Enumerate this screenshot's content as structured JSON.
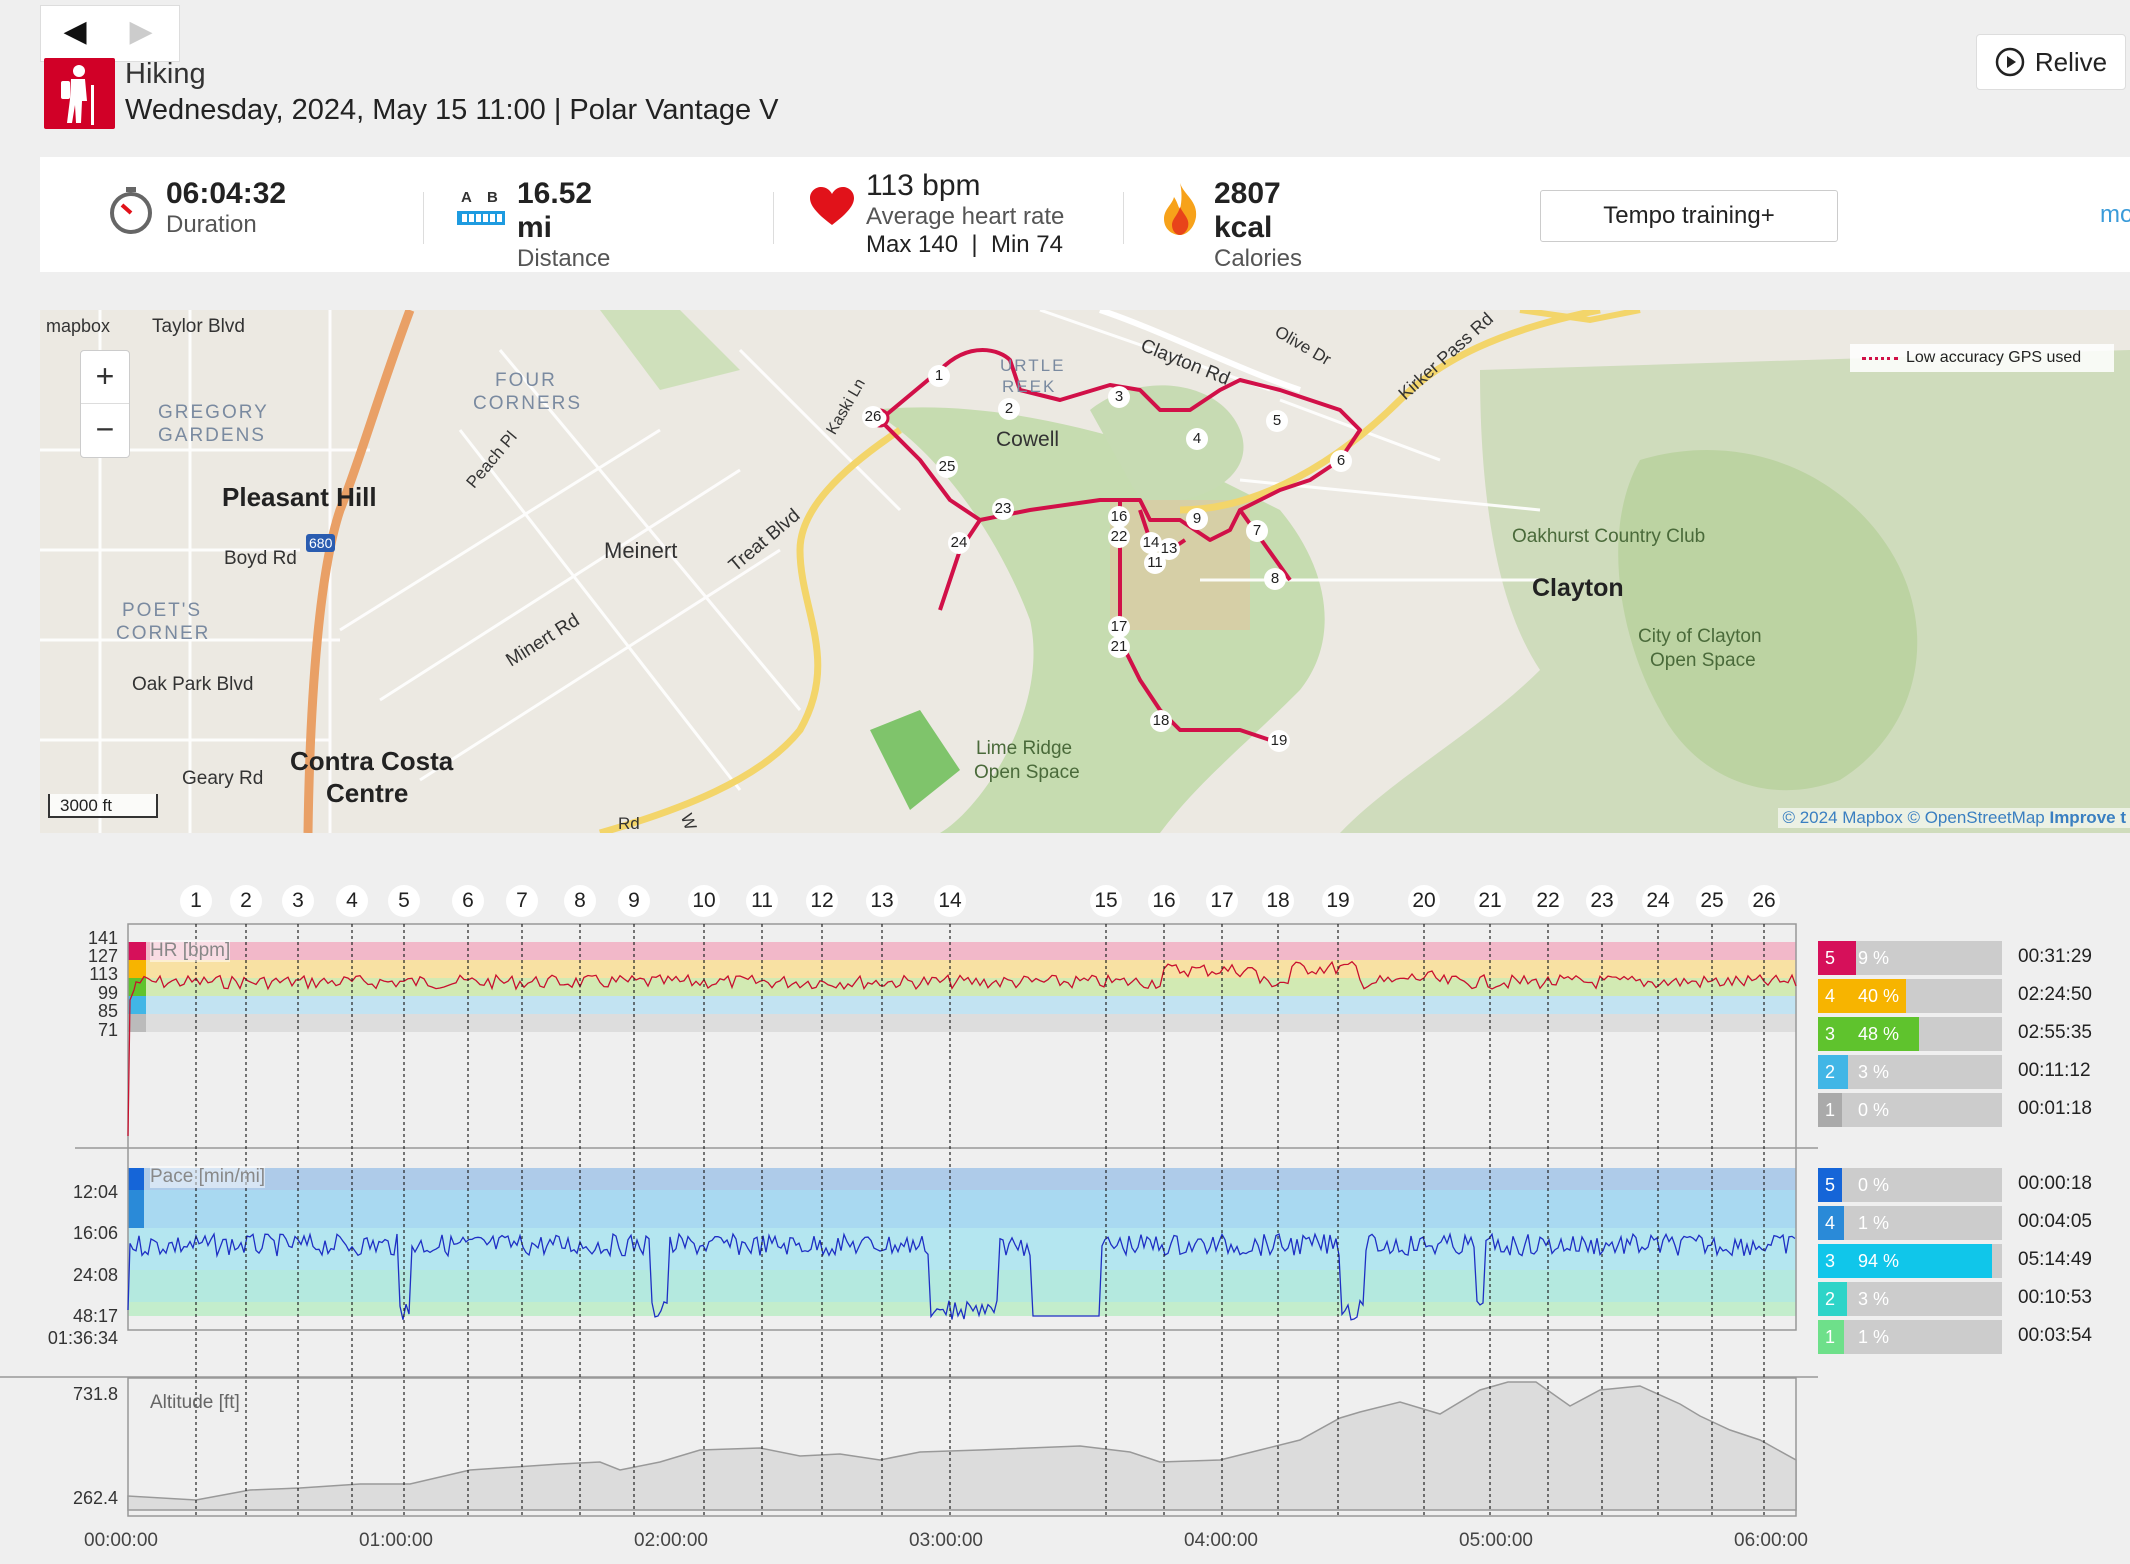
{
  "nav": {
    "prev_icon": "◀",
    "next_icon": "▶"
  },
  "activity": {
    "type": "Hiking",
    "date_line": "Wednesday, 2024, May 15 11:00 | Polar Vantage V",
    "icon": "hiking-person-icon"
  },
  "relive": {
    "label": "Relive"
  },
  "summary": {
    "duration": {
      "value": "06:04:32",
      "label": "Duration"
    },
    "distance": {
      "value": "16.52 mi",
      "label": "Distance",
      "icon_a": "A",
      "icon_b": "B"
    },
    "heart_rate": {
      "value": "113 bpm",
      "label": "Average heart rate",
      "detail": "Max 140  |  Min 74"
    },
    "calories": {
      "value": "2807 kcal",
      "label": "Calories"
    },
    "benefit_button": "Tempo training+",
    "more_link": "mo"
  },
  "map": {
    "logo": "mapbox",
    "zoom_in": "+",
    "zoom_out": "−",
    "scale": "3000 ft",
    "legend": "Low accuracy GPS used",
    "attribution_1": "© 2024 Mapbox © OpenStreetMap",
    "attribution_2": "Improve t",
    "labels": {
      "taylor": "Taylor Blvd",
      "four_corners_1": "FOUR",
      "four_corners_2": "CORNERS",
      "gregory_1": "GREGORY",
      "gregory_2": "GARDENS",
      "pleasant_hill": "Pleasant Hill",
      "hwy680": "680",
      "boyd": "Boyd Rd",
      "poets_1": "POET'S",
      "poets_2": "CORNER",
      "oak_park": "Oak Park Blvd",
      "geary": "Geary Rd",
      "ccc_1": "Contra Costa",
      "ccc_2": "Centre",
      "meinert": "Meinert",
      "minert": "Minert Rd",
      "treat": "Treat Blvd",
      "peach": "Peach Pl",
      "kaski": "Kaski Ln",
      "turtle_1": "URTLE",
      "turtle_2": "REEK",
      "cowell": "Cowell",
      "clayton_rd": "Clayton Rd",
      "olive": "Olive Dr",
      "kirker": "Kirker Pass Rd",
      "oakhurst": "Oakhurst Country Club",
      "clayton": "Clayton",
      "coc_1": "City of Clayton",
      "coc_2": "Open Space",
      "lime_1": "Lime Ridge",
      "lime_2": "Open Space",
      "rd": "Rd",
      "w": "W"
    },
    "lap_markers": [
      "1",
      "2",
      "3",
      "4",
      "5",
      "6",
      "7",
      "8",
      "9",
      "11",
      "13",
      "14",
      "16",
      "17",
      "18",
      "19",
      "21",
      "22",
      "23",
      "24",
      "25",
      "26"
    ]
  },
  "charts": {
    "lap_labels": [
      "1",
      "2",
      "3",
      "4",
      "5",
      "6",
      "7",
      "8",
      "9",
      "10",
      "11",
      "12",
      "13",
      "14",
      "15",
      "16",
      "17",
      "18",
      "19",
      "20",
      "21",
      "22",
      "23",
      "24",
      "25",
      "26"
    ],
    "hr": {
      "title": "HR [bpm]",
      "ticks": [
        "141",
        "127",
        "113",
        "99",
        "85",
        "71"
      ],
      "zones": [
        {
          "zone": "5",
          "percent": "9 %",
          "fraction": 0.09,
          "time": "00:31:29",
          "color": "#d6105a"
        },
        {
          "zone": "4",
          "percent": "40 %",
          "fraction": 0.4,
          "time": "02:24:50",
          "color": "#f7b400"
        },
        {
          "zone": "3",
          "percent": "48 %",
          "fraction": 0.48,
          "time": "02:55:35",
          "color": "#5fc32d"
        },
        {
          "zone": "2",
          "percent": "3 %",
          "fraction": 0.03,
          "time": "00:11:12",
          "color": "#41b6e6"
        },
        {
          "zone": "1",
          "percent": "0 %",
          "fraction": 0.0,
          "time": "00:01:18",
          "color": "#aaaaaa"
        }
      ]
    },
    "pace": {
      "title": "Pace [min/mi]",
      "ticks": [
        "12:04",
        "16:06",
        "24:08",
        "48:17",
        "01:36:34"
      ],
      "zones": [
        {
          "zone": "5",
          "percent": "0 %",
          "fraction": 0.0,
          "time": "00:00:18",
          "color": "#1565d8"
        },
        {
          "zone": "4",
          "percent": "1 %",
          "fraction": 0.01,
          "time": "00:04:05",
          "color": "#2a8ad8"
        },
        {
          "zone": "3",
          "percent": "94 %",
          "fraction": 0.94,
          "time": "05:14:49",
          "color": "#10c6ea"
        },
        {
          "zone": "2",
          "percent": "3 %",
          "fraction": 0.03,
          "time": "00:10:53",
          "color": "#2ed4c8"
        },
        {
          "zone": "1",
          "percent": "1 %",
          "fraction": 0.01,
          "time": "00:03:54",
          "color": "#6ee08a"
        }
      ]
    },
    "altitude": {
      "title": "Altitude [ft]",
      "ticks": [
        "731.8",
        "262.4"
      ]
    },
    "time_axis": [
      "00:00:00",
      "01:00:00",
      "02:00:00",
      "03:00:00",
      "04:00:00",
      "05:00:00",
      "06:00:00"
    ]
  }
}
